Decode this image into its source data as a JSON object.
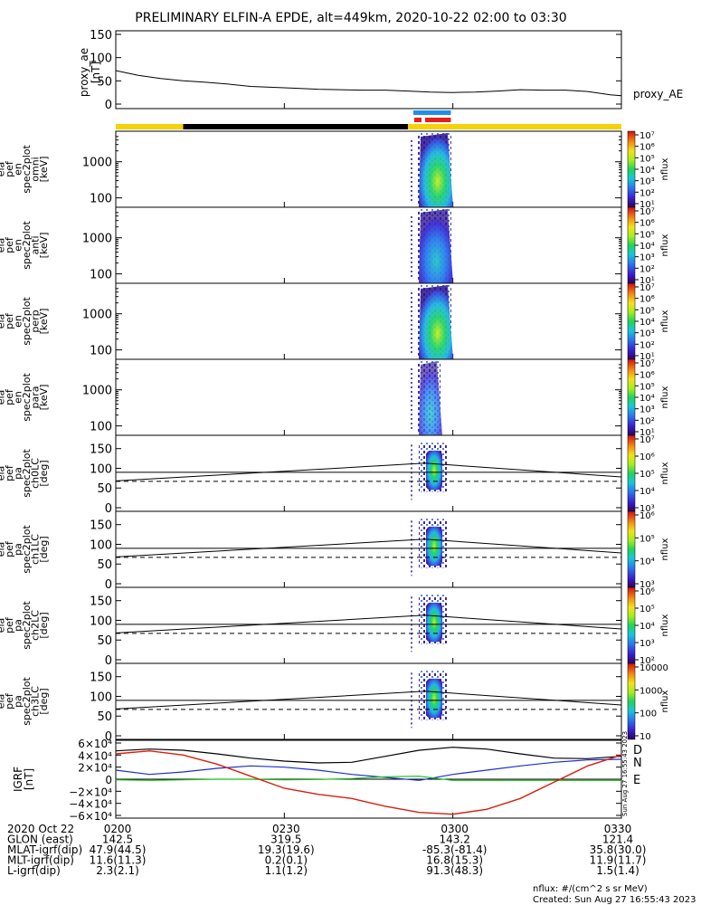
{
  "title": "PRELIMINARY ELFIN-A EPDE, alt=449km, 2020-10-22 02:00 to 03:30",
  "colors": {
    "sunlight_bar": "#f5d20a",
    "shadow_bar": "#000000",
    "science_zone_blue": "#1f8fe6",
    "science_zone_red": "#e3201b",
    "grf_north": "#1a2fd0",
    "grf_east": "#10c010",
    "grf_d": "#d81e0c",
    "grf_total": "#000000"
  },
  "chart_data": {
    "type": "multi-panel time series and spectrograms",
    "x_range": [
      "02:00",
      "03:30"
    ],
    "x_ticks": [
      "0200",
      "0230",
      "0300",
      "0330"
    ],
    "orbit_bar": [
      {
        "from": "02:00",
        "to": "02:12",
        "state": "sunlight",
        "color": "#f5d20a"
      },
      {
        "from": "02:12",
        "to": "02:52",
        "state": "shadow",
        "color": "#000000"
      },
      {
        "from": "02:52",
        "to": "03:30",
        "state": "sunlight",
        "color": "#f5d20a"
      }
    ],
    "science_zone": {
      "from": "02:52",
      "to": "02:59"
    },
    "proxy_ae": {
      "ylabel": "proxy_ae\n[nT]",
      "legend": "proxy_AE",
      "yrange": [
        0,
        150
      ],
      "yticks": [
        "0",
        "50",
        "100",
        "150"
      ],
      "t_min": [
        0,
        4,
        8,
        12,
        16,
        20,
        24,
        28,
        32,
        36,
        40,
        44,
        48,
        52,
        56,
        60,
        64,
        68,
        72,
        76,
        80,
        84,
        88,
        90
      ],
      "values": [
        72,
        62,
        55,
        50,
        47,
        43,
        38,
        36,
        34,
        32,
        31,
        30,
        30,
        28,
        26,
        25,
        26,
        28,
        31,
        30,
        30,
        27,
        20,
        18
      ]
    },
    "energy_panels": [
      {
        "ylabel": [
          "ela",
          "pef",
          "en",
          "spec2plot",
          "omni",
          "[keV]"
        ],
        "yticks": [
          "100",
          "1000"
        ],
        "colorbar_ticks": [
          "10¹",
          "10²",
          "10³",
          "10⁴",
          "10⁵",
          "10⁶",
          "10⁷"
        ],
        "colorbar_label": "nflux"
      },
      {
        "ylabel": [
          "ela",
          "pef",
          "en",
          "spec2plot",
          "anti",
          "[keV]"
        ],
        "yticks": [
          "100",
          "1000"
        ],
        "colorbar_ticks": [
          "10¹",
          "10²",
          "10³",
          "10⁴",
          "10⁵",
          "10⁶",
          "10⁷"
        ],
        "colorbar_label": "nflux"
      },
      {
        "ylabel": [
          "ela",
          "pef",
          "en",
          "spec2plot",
          "perp",
          "[keV]"
        ],
        "yticks": [
          "100",
          "1000"
        ],
        "colorbar_ticks": [
          "10¹",
          "10²",
          "10³",
          "10⁴",
          "10⁵",
          "10⁶",
          "10⁷"
        ],
        "colorbar_label": "nflux"
      },
      {
        "ylabel": [
          "ela",
          "pef",
          "en",
          "spec2plot",
          "para",
          "[keV]"
        ],
        "yticks": [
          "100",
          "1000"
        ],
        "colorbar_ticks": [
          "10¹",
          "10²",
          "10³",
          "10⁴",
          "10⁵",
          "10⁶",
          "10⁷"
        ],
        "colorbar_label": "nflux"
      }
    ],
    "pitch_panels": [
      {
        "ylabel": [
          "ela",
          "pef",
          "pa",
          "spec2plot",
          "ch0LC",
          "[deg]"
        ],
        "yticks": [
          "0",
          "50",
          "100",
          "150"
        ],
        "colorbar_ticks": [
          "10³",
          "10⁴",
          "10⁵",
          "10⁶",
          "10⁷"
        ],
        "colorbar_label": "nflux"
      },
      {
        "ylabel": [
          "ela",
          "pef",
          "pa",
          "spec2plot",
          "ch1LC",
          "[deg]"
        ],
        "yticks": [
          "0",
          "50",
          "100",
          "150"
        ],
        "colorbar_ticks": [
          "10³",
          "10⁴",
          "10⁵",
          "10⁶"
        ],
        "colorbar_label": "nflux"
      },
      {
        "ylabel": [
          "ela",
          "pef",
          "pa",
          "spec2plot",
          "ch2LC",
          "[deg]"
        ],
        "yticks": [
          "0",
          "50",
          "100",
          "150"
        ],
        "colorbar_ticks": [
          "10²",
          "10³",
          "10⁴",
          "10⁵",
          "10⁶"
        ],
        "colorbar_label": "nflux"
      },
      {
        "ylabel": [
          "ela",
          "pef",
          "pa",
          "spec2plot",
          "ch3LC",
          "[deg]"
        ],
        "yticks": [
          "0",
          "50",
          "100",
          "150"
        ],
        "colorbar_ticks": [
          "10",
          "100",
          "1000",
          "10000"
        ],
        "colorbar_label": "nflux"
      }
    ],
    "pitch_lines": {
      "solid_reference": 90,
      "dashed_reference": 67,
      "loss_cone_t_min": [
        0,
        55,
        90
      ],
      "loss_cone_values": [
        68,
        113,
        78
      ]
    },
    "grf": {
      "ylabel": [
        "IGRF",
        "[nT]"
      ],
      "yrange": [
        -60000,
        60000
      ],
      "yticks": [
        "−6×10⁴",
        "−4×10⁴",
        "−2×10⁴",
        "0",
        "2×10⁴",
        "4×10⁴",
        "6×10⁴"
      ],
      "legend": [
        "D",
        "N",
        "E"
      ],
      "t_min": [
        0,
        6,
        12,
        18,
        24,
        30,
        36,
        42,
        48,
        54,
        60,
        66,
        72,
        78,
        84,
        90
      ],
      "total": [
        47000,
        50000,
        48000,
        42000,
        35000,
        30000,
        27000,
        28000,
        38000,
        48000,
        53000,
        50000,
        42000,
        35000,
        34000,
        38000
      ],
      "north": [
        15000,
        8000,
        12000,
        18000,
        22000,
        20000,
        15000,
        8000,
        3000,
        -2000,
        8000,
        15000,
        22000,
        28000,
        32000,
        33000
      ],
      "east": [
        -1000,
        -2000,
        -1000,
        0,
        0,
        -1000,
        -500,
        1000,
        4000,
        5000,
        -2000,
        -2000,
        -2000,
        -2000,
        -2000,
        -2000
      ],
      "down": [
        42000,
        47000,
        40000,
        25000,
        5000,
        -15000,
        -25000,
        -32000,
        -45000,
        -55000,
        -58000,
        -50000,
        -32000,
        -5000,
        22000,
        40000
      ]
    },
    "side_annotation": "Sun Aug 27 16:55:43 2023"
  },
  "ephemeris": {
    "rows": [
      {
        "label": "2020 Oct 22",
        "values": [
          "0200",
          "0230",
          "0300",
          "0330"
        ]
      },
      {
        "label": "GLON (east)",
        "values": [
          "142.5",
          "319.5",
          "143.2",
          "121.4"
        ]
      },
      {
        "label": "MLAT-igrf(dip)",
        "values": [
          "47.9(44.5)",
          "19.3(19.6)",
          "-85.3(-81.4)",
          "35.8(30.0)"
        ]
      },
      {
        "label": "MLT-igrf(dip)",
        "values": [
          "11.6(11.3)",
          "0.2(0.1)",
          "16.8(15.3)",
          "11.9(11.7)"
        ]
      },
      {
        "label": "L-igrf(dip)",
        "values": [
          "2.3(2.1)",
          "1.1(1.2)",
          "91.3(48.3)",
          "1.5(1.4)"
        ]
      }
    ]
  },
  "footer": {
    "units": "nflux: #/(cm^2 s sr MeV)",
    "created": "Created: Sun Aug 27 16:55:43 2023"
  }
}
